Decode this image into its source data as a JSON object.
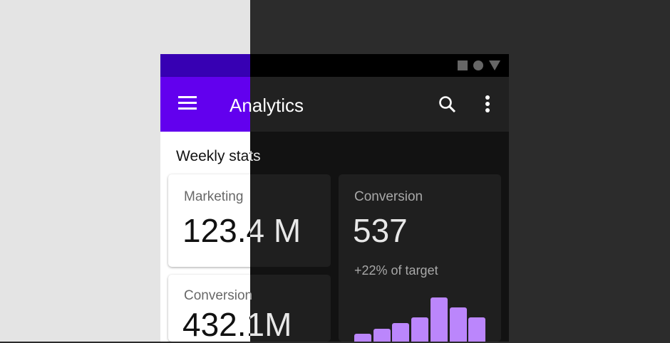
{
  "status_icons": [
    "square-icon",
    "circle-icon",
    "triangle-icon"
  ],
  "appbar": {
    "title": "Analytics",
    "icons": [
      "menu-icon",
      "search-icon",
      "more-vert-icon"
    ]
  },
  "section_title": "Weekly stats",
  "cards": [
    {
      "label": "Marketing",
      "value": "123.4 M"
    },
    {
      "label": "Conversion",
      "value": "432.1M"
    },
    {
      "label": "Conversion",
      "value": "537",
      "subtitle": "+22% of target"
    }
  ],
  "colors": {
    "primary": "#6200ee",
    "primary_variant": "#3700b3",
    "dark_primary": "#bb86fc",
    "dark_surface": "#1f1f1f",
    "dark_background": "#121212"
  },
  "chart_data": {
    "type": "bar",
    "values": [
      11,
      18,
      26,
      34,
      62,
      48,
      34
    ]
  }
}
